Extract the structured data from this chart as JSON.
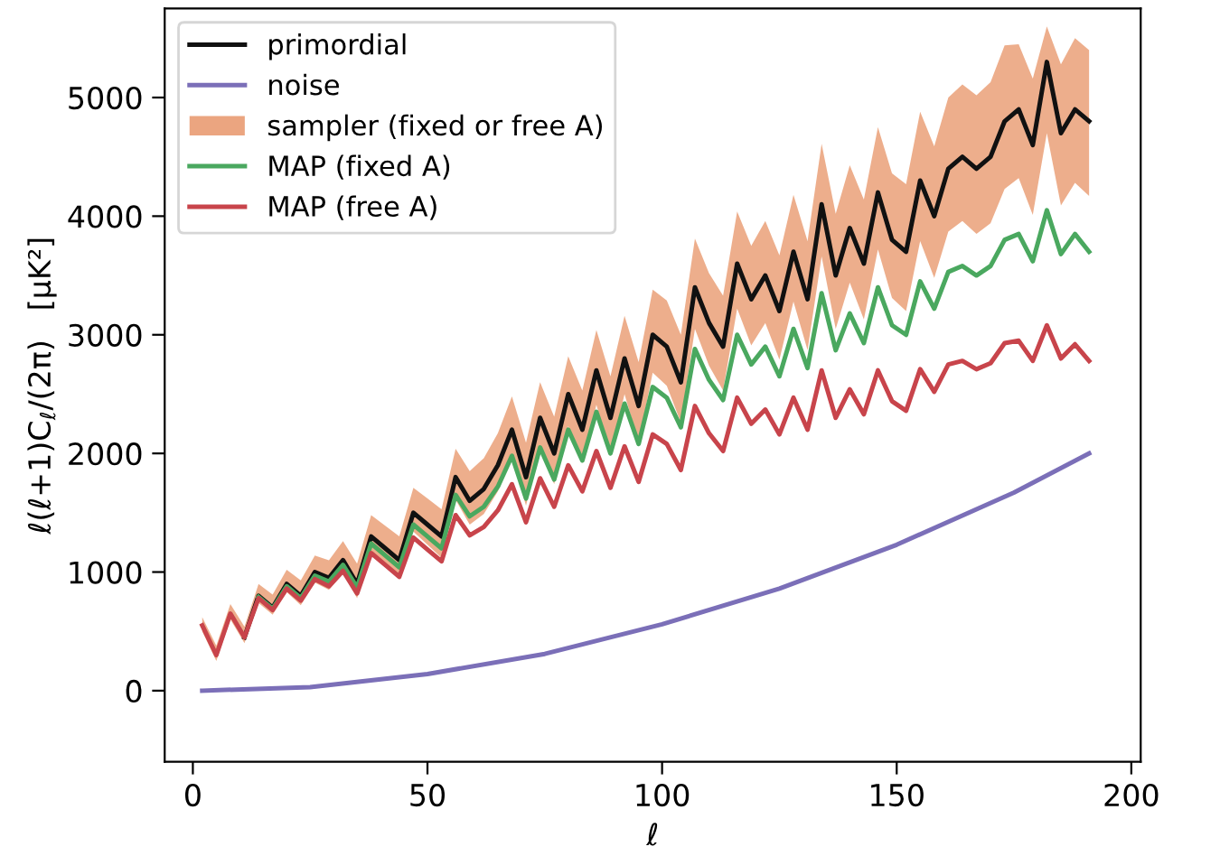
{
  "chart_data": {
    "type": "line",
    "xlabel": "ℓ",
    "ylabel": "ℓ(ℓ+1)C$_{ℓ}$/(2π)   [μK²]",
    "x": [
      2,
      5,
      8,
      11,
      14,
      17,
      20,
      23,
      26,
      29,
      32,
      35,
      38,
      41,
      44,
      47,
      50,
      53,
      56,
      59,
      62,
      65,
      68,
      71,
      74,
      77,
      80,
      83,
      86,
      89,
      92,
      95,
      98,
      101,
      104,
      107,
      110,
      113,
      116,
      119,
      122,
      125,
      128,
      131,
      134,
      137,
      140,
      143,
      146,
      149,
      152,
      155,
      158,
      161,
      164,
      167,
      170,
      173,
      176,
      179,
      182,
      185,
      188,
      191
    ],
    "series": [
      {
        "name": "primordial",
        "color": "#111111",
        "values": [
          null,
          null,
          null,
          450,
          800,
          700,
          900,
          800,
          1000,
          950,
          1100,
          900,
          1300,
          1200,
          1100,
          1500,
          1400,
          1300,
          1800,
          1600,
          1700,
          1900,
          2200,
          1800,
          2300,
          2000,
          2500,
          2200,
          2700,
          2300,
          2800,
          2400,
          3000,
          2900,
          2600,
          3400,
          3100,
          2900,
          3600,
          3300,
          3500,
          3200,
          3700,
          3300,
          4100,
          3500,
          3900,
          3600,
          4200,
          3800,
          3700,
          4300,
          4000,
          4400,
          4500,
          4400,
          4500,
          4800,
          4900,
          4600,
          5300,
          4700,
          4900,
          4800
        ]
      },
      {
        "name": "noise",
        "color": "#7b6fb8",
        "x": [
          2,
          25,
          50,
          75,
          100,
          125,
          150,
          175,
          191
        ],
        "values": [
          0,
          30,
          140,
          310,
          560,
          860,
          1230,
          1670,
          2000
        ]
      },
      {
        "name": "sampler (fixed or free A)",
        "type": "area",
        "color": "#eba580",
        "lower": [
          500,
          250,
          600,
          400,
          740,
          640,
          830,
          720,
          910,
          850,
          990,
          780,
          1170,
          1060,
          950,
          1340,
          1230,
          1120,
          1610,
          1400,
          1490,
          1680,
          1970,
          1560,
          2050,
          1740,
          2230,
          1920,
          2410,
          2000,
          2500,
          2090,
          2680,
          2570,
          2260,
          3050,
          2740,
          2530,
          3220,
          2910,
          3100,
          2790,
          3280,
          2870,
          3660,
          3050,
          3440,
          3130,
          3720,
          3310,
          3200,
          3790,
          3480,
          3870,
          3960,
          3850,
          3940,
          4230,
          4320,
          4010,
          4700,
          4090,
          4280,
          4170
        ],
        "values": [
          null,
          null,
          null,
          null,
          null,
          null,
          null,
          null,
          null,
          null,
          null,
          null,
          null,
          null,
          null,
          null,
          null,
          null,
          null,
          null,
          null,
          null,
          null,
          null,
          null,
          null,
          null,
          null,
          null,
          null,
          null,
          null,
          null,
          null,
          null,
          null,
          null,
          null,
          null,
          null,
          null,
          null,
          null,
          null,
          null,
          null,
          null,
          null,
          null,
          null,
          null,
          null,
          null,
          null,
          null,
          null,
          null,
          null,
          null,
          null,
          null,
          null,
          null,
          null
        ],
        "upper": [
          620,
          380,
          730,
          540,
          900,
          810,
          1020,
          930,
          1140,
          1100,
          1260,
          1070,
          1480,
          1390,
          1300,
          1710,
          1620,
          1530,
          2040,
          1850,
          1960,
          2170,
          2480,
          2090,
          2600,
          2310,
          2820,
          2530,
          3040,
          2650,
          3160,
          2770,
          3380,
          3290,
          3000,
          3810,
          3520,
          3330,
          4040,
          3750,
          3960,
          3670,
          4180,
          3790,
          4610,
          4020,
          4430,
          4140,
          4750,
          4360,
          4270,
          4880,
          4590,
          5000,
          5110,
          5020,
          5130,
          5440,
          5450,
          5160,
          5600,
          5280,
          5500,
          5400
        ]
      },
      {
        "name": "MAP (fixed A)",
        "color": "#4aa85f",
        "values": [
          null,
          null,
          null,
          null,
          790,
          690,
          880,
          780,
          970,
          920,
          1060,
          870,
          1240,
          1140,
          1040,
          1400,
          1300,
          1200,
          1650,
          1470,
          1550,
          1720,
          1980,
          1620,
          2050,
          1780,
          2200,
          1940,
          2350,
          2000,
          2420,
          2080,
          2560,
          2470,
          2220,
          2880,
          2620,
          2450,
          3000,
          2750,
          2900,
          2650,
          3050,
          2720,
          3350,
          2870,
          3180,
          2930,
          3400,
          3080,
          3000,
          3450,
          3220,
          3530,
          3580,
          3500,
          3580,
          3800,
          3850,
          3620,
          4050,
          3680,
          3850,
          3700
        ]
      },
      {
        "name": "MAP (free A)",
        "color": "#c8444b",
        "values": [
          550,
          300,
          650,
          450,
          780,
          680,
          860,
          760,
          940,
          880,
          1010,
          820,
          1160,
          1060,
          960,
          1290,
          1190,
          1090,
          1480,
          1310,
          1380,
          1520,
          1740,
          1420,
          1790,
          1550,
          1900,
          1680,
          2020,
          1710,
          2060,
          1760,
          2160,
          2080,
          1860,
          2400,
          2170,
          2020,
          2470,
          2250,
          2370,
          2160,
          2470,
          2200,
          2700,
          2300,
          2540,
          2330,
          2700,
          2440,
          2360,
          2710,
          2520,
          2750,
          2780,
          2710,
          2760,
          2930,
          2950,
          2780,
          3080,
          2800,
          2920,
          2780
        ]
      }
    ],
    "xlim": [
      -6,
      202
    ],
    "xticks": [
      0,
      50,
      100,
      150,
      200
    ],
    "ylim": [
      -600,
      5750
    ],
    "yticks": [
      0,
      1000,
      2000,
      3000,
      4000,
      5000
    ],
    "legend": "top left",
    "grid": false
  }
}
